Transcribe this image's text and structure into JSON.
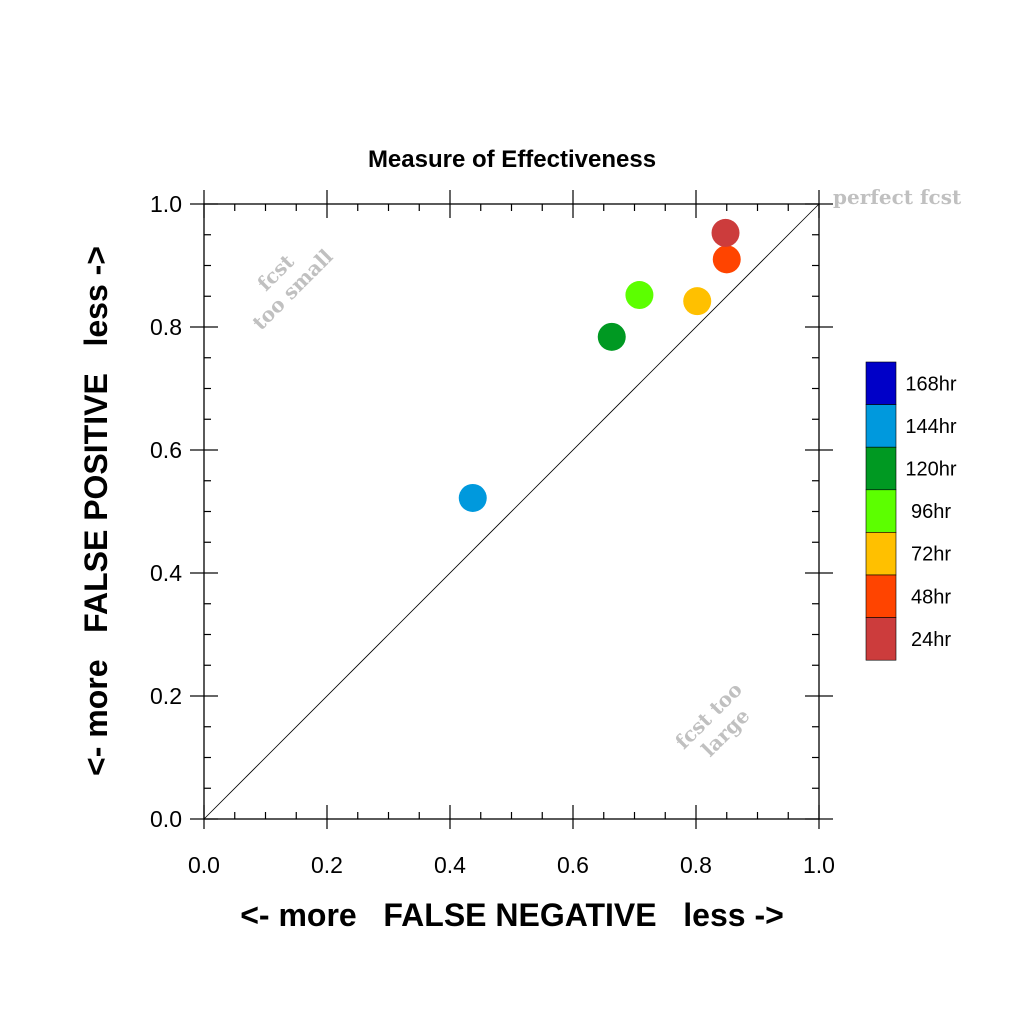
{
  "chart_data": {
    "type": "scatter",
    "title": "Measure of Effectiveness",
    "xlabel": "<- more   FALSE NEGATIVE   less ->",
    "ylabel": "<- more   FALSE POSITIVE   less ->",
    "xlim": [
      0.0,
      1.0
    ],
    "ylim": [
      0.0,
      1.0
    ],
    "xticks": [
      "0.0",
      "0.2",
      "0.4",
      "0.6",
      "0.8",
      "1.0"
    ],
    "yticks": [
      "0.0",
      "0.2",
      "0.4",
      "0.6",
      "0.8",
      "1.0"
    ],
    "grid": false,
    "reference_line": "diagonal",
    "annotations": {
      "perfect": "perfect fcst",
      "too_small": [
        "fcst",
        "too small"
      ],
      "too_large": [
        "fcst too",
        "large"
      ]
    },
    "legend_position": "right",
    "series": [
      {
        "name": "168hr",
        "color": "#0000c8",
        "x": null,
        "y": null
      },
      {
        "name": "144hr",
        "color": "#0099dd",
        "x": 0.437,
        "y": 0.522
      },
      {
        "name": "120hr",
        "color": "#009922",
        "x": 0.663,
        "y": 0.784
      },
      {
        "name": "96hr",
        "color": "#5cff00",
        "x": 0.708,
        "y": 0.852
      },
      {
        "name": "72hr",
        "color": "#ffc000",
        "x": 0.802,
        "y": 0.842
      },
      {
        "name": "48hr",
        "color": "#ff4400",
        "x": 0.85,
        "y": 0.91
      },
      {
        "name": "24hr",
        "color": "#cc3c3c",
        "x": 0.848,
        "y": 0.953
      }
    ]
  }
}
